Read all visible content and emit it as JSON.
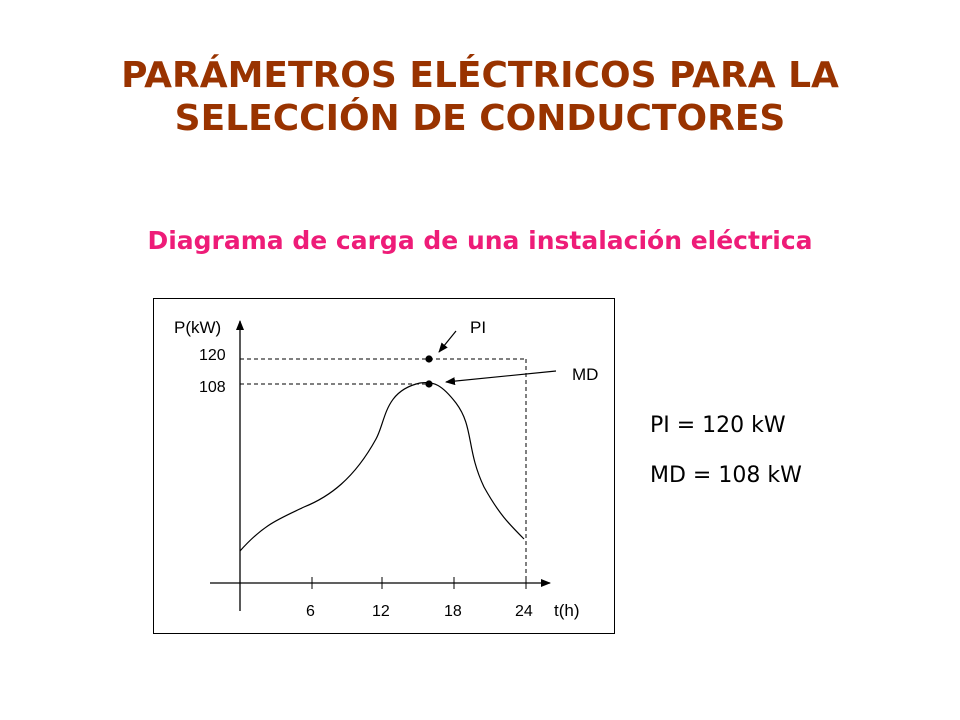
{
  "colors": {
    "title": "#993300",
    "subtitle": "#ee1c78",
    "diagram": "#000000"
  },
  "title": {
    "line1": "PARÁMETROS ELÉCTRICOS PARA LA",
    "line2": "SELECCIÓN DE CONDUCTORES"
  },
  "subtitle": "Diagrama de carga de una instalación eléctrica",
  "diagram": {
    "y_axis_label": "P(kW)",
    "x_axis_label": "t(h)",
    "y_ticks": [
      "120",
      "108"
    ],
    "x_ticks": [
      "6",
      "12",
      "18",
      "24"
    ],
    "point_labels": {
      "peak": "PI",
      "max_demand": "MD"
    }
  },
  "summary": {
    "pi": "PI = 120 kW",
    "md": "MD = 108 kW"
  }
}
